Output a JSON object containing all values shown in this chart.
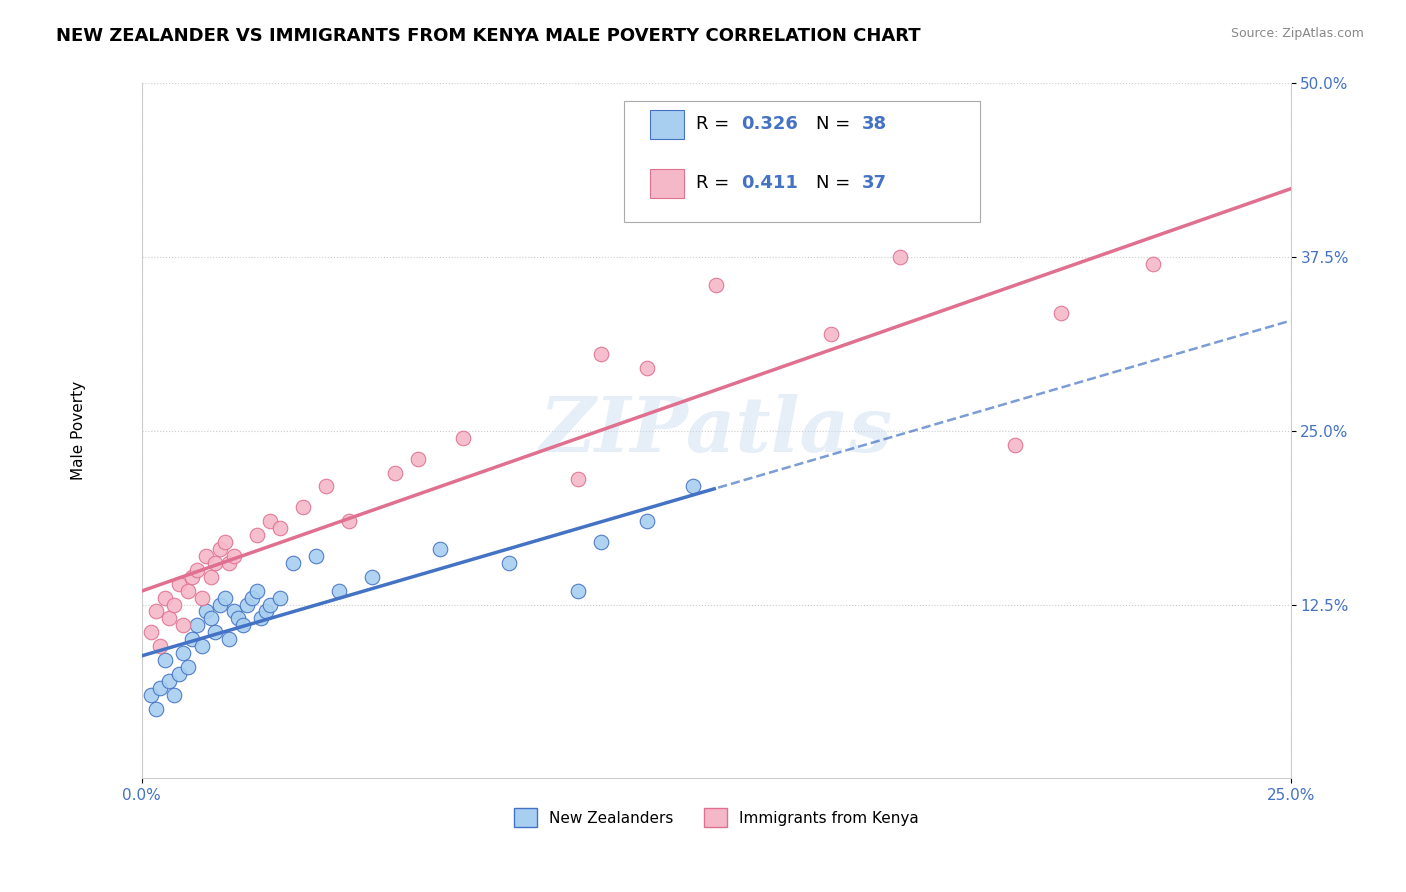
{
  "title": "NEW ZEALANDER VS IMMIGRANTS FROM KENYA MALE POVERTY CORRELATION CHART",
  "source": "Source: ZipAtlas.com",
  "ylabel": "Male Poverty",
  "xlim": [
    0.0,
    0.25
  ],
  "ylim": [
    0.0,
    0.5
  ],
  "xtick_vals": [
    0.0,
    0.25
  ],
  "xtick_labels": [
    "0.0%",
    "25.0%"
  ],
  "ytick_vals": [
    0.125,
    0.25,
    0.375,
    0.5
  ],
  "ytick_labels": [
    "12.5%",
    "25.0%",
    "37.5%",
    "50.0%"
  ],
  "color_nz": "#A8CFF0",
  "color_kenya": "#F5B8C8",
  "line_color_nz": "#4472C4",
  "line_color_kenya": "#E07090",
  "watermark": "ZIPatlas",
  "bg_color": "#FFFFFF",
  "grid_color": "#CCCCCC",
  "title_fontsize": 13,
  "axis_label_fontsize": 11,
  "tick_fontsize": 11,
  "legend_fontsize": 13,
  "nz_x": [
    0.002,
    0.003,
    0.004,
    0.005,
    0.006,
    0.007,
    0.008,
    0.009,
    0.01,
    0.011,
    0.012,
    0.013,
    0.014,
    0.015,
    0.016,
    0.017,
    0.018,
    0.019,
    0.02,
    0.021,
    0.022,
    0.023,
    0.024,
    0.025,
    0.026,
    0.027,
    0.028,
    0.03,
    0.033,
    0.038,
    0.043,
    0.05,
    0.065,
    0.08,
    0.095,
    0.1,
    0.11,
    0.12
  ],
  "nz_y": [
    0.06,
    0.05,
    0.065,
    0.085,
    0.07,
    0.06,
    0.075,
    0.09,
    0.08,
    0.1,
    0.11,
    0.095,
    0.12,
    0.115,
    0.105,
    0.125,
    0.13,
    0.1,
    0.12,
    0.115,
    0.11,
    0.125,
    0.13,
    0.135,
    0.115,
    0.12,
    0.125,
    0.13,
    0.155,
    0.16,
    0.135,
    0.145,
    0.165,
    0.155,
    0.135,
    0.17,
    0.185,
    0.21
  ],
  "kenya_x": [
    0.002,
    0.003,
    0.004,
    0.005,
    0.006,
    0.007,
    0.008,
    0.009,
    0.01,
    0.011,
    0.012,
    0.013,
    0.014,
    0.015,
    0.016,
    0.017,
    0.018,
    0.019,
    0.02,
    0.025,
    0.028,
    0.03,
    0.035,
    0.04,
    0.045,
    0.055,
    0.06,
    0.07,
    0.095,
    0.1,
    0.11,
    0.125,
    0.15,
    0.165,
    0.19,
    0.2,
    0.22
  ],
  "kenya_y": [
    0.105,
    0.12,
    0.095,
    0.13,
    0.115,
    0.125,
    0.14,
    0.11,
    0.135,
    0.145,
    0.15,
    0.13,
    0.16,
    0.145,
    0.155,
    0.165,
    0.17,
    0.155,
    0.16,
    0.175,
    0.185,
    0.18,
    0.195,
    0.21,
    0.185,
    0.22,
    0.23,
    0.245,
    0.215,
    0.305,
    0.295,
    0.355,
    0.32,
    0.375,
    0.24,
    0.335,
    0.37
  ],
  "nz_line_x_end": 0.125,
  "nz_line_intercept": 0.075,
  "nz_line_slope": 1.1,
  "kenya_line_intercept": 0.105,
  "kenya_line_slope": 1.25
}
